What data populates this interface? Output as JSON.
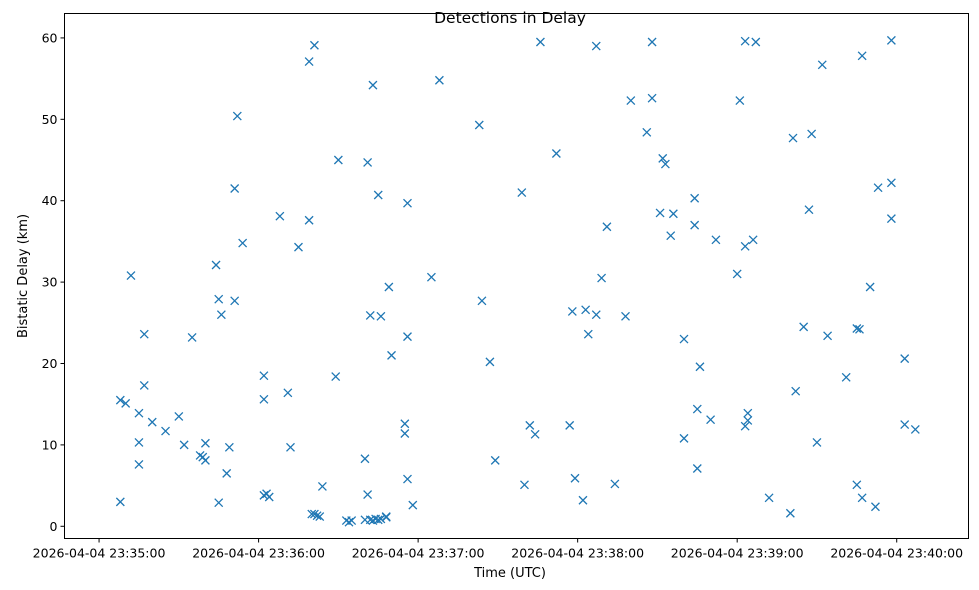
{
  "chart_data": {
    "type": "scatter",
    "title": "Detections in Delay",
    "xlabel": "Time (UTC)",
    "ylabel": "Bistatic Delay (km)",
    "x_unit": "time of day (UTC), date 2026-04-04",
    "xlim": [
      "23:34:47",
      "23:40:27"
    ],
    "ylim": [
      -1.5,
      63
    ],
    "x_ticks": [
      {
        "time": "23:35:00",
        "label": "2026-04-04 23:35:00"
      },
      {
        "time": "23:36:00",
        "label": "2026-04-04 23:36:00"
      },
      {
        "time": "23:37:00",
        "label": "2026-04-04 23:37:00"
      },
      {
        "time": "23:38:00",
        "label": "2026-04-04 23:38:00"
      },
      {
        "time": "23:39:00",
        "label": "2026-04-04 23:39:00"
      },
      {
        "time": "23:40:00",
        "label": "2026-04-04 23:40:00"
      }
    ],
    "y_ticks": [
      0,
      10,
      20,
      30,
      40,
      50,
      60
    ],
    "grid": false,
    "legend": "none",
    "marker": "x",
    "color": "#1f77b4",
    "points": [
      [
        "23:35:08",
        15.5
      ],
      [
        "23:35:08",
        3.0
      ],
      [
        "23:35:10",
        15.1
      ],
      [
        "23:35:12",
        30.8
      ],
      [
        "23:35:15",
        13.9
      ],
      [
        "23:35:15",
        10.3
      ],
      [
        "23:35:15",
        7.6
      ],
      [
        "23:35:17",
        23.6
      ],
      [
        "23:35:17",
        17.3
      ],
      [
        "23:35:20",
        12.8
      ],
      [
        "23:35:25",
        11.7
      ],
      [
        "23:35:30",
        13.5
      ],
      [
        "23:35:32",
        10.0
      ],
      [
        "23:35:35",
        23.2
      ],
      [
        "23:35:38",
        8.7
      ],
      [
        "23:35:39",
        8.5
      ],
      [
        "23:35:40",
        10.2
      ],
      [
        "23:35:40",
        8.1
      ],
      [
        "23:35:44",
        32.1
      ],
      [
        "23:35:45",
        27.9
      ],
      [
        "23:35:45",
        2.9
      ],
      [
        "23:35:46",
        26.0
      ],
      [
        "23:35:48",
        6.5
      ],
      [
        "23:35:49",
        9.7
      ],
      [
        "23:35:51",
        27.7
      ],
      [
        "23:35:51",
        41.5
      ],
      [
        "23:35:52",
        50.4
      ],
      [
        "23:35:54",
        34.8
      ],
      [
        "23:36:02",
        15.6
      ],
      [
        "23:36:02",
        18.5
      ],
      [
        "23:36:02",
        3.8
      ],
      [
        "23:36:03",
        4.0
      ],
      [
        "23:36:04",
        3.6
      ],
      [
        "23:36:08",
        38.1
      ],
      [
        "23:36:11",
        16.4
      ],
      [
        "23:36:12",
        9.7
      ],
      [
        "23:36:15",
        34.3
      ],
      [
        "23:36:19",
        57.1
      ],
      [
        "23:36:19",
        37.6
      ],
      [
        "23:36:20",
        1.5
      ],
      [
        "23:36:21",
        59.1
      ],
      [
        "23:36:21",
        1.5
      ],
      [
        "23:36:22",
        1.3
      ],
      [
        "23:36:23",
        1.2
      ],
      [
        "23:36:24",
        4.9
      ],
      [
        "23:36:29",
        18.4
      ],
      [
        "23:36:30",
        45.0
      ],
      [
        "23:36:33",
        0.7
      ],
      [
        "23:36:34",
        0.5
      ],
      [
        "23:36:35",
        0.7
      ],
      [
        "23:36:40",
        8.3
      ],
      [
        "23:36:40",
        0.8
      ],
      [
        "23:36:41",
        44.7
      ],
      [
        "23:36:41",
        3.9
      ],
      [
        "23:36:42",
        25.9
      ],
      [
        "23:36:42",
        0.8
      ],
      [
        "23:36:43",
        54.2
      ],
      [
        "23:36:43",
        0.7
      ],
      [
        "23:36:44",
        0.9
      ],
      [
        "23:36:45",
        40.7
      ],
      [
        "23:36:45",
        0.8
      ],
      [
        "23:36:46",
        25.8
      ],
      [
        "23:36:46",
        0.9
      ],
      [
        "23:36:48",
        1.1
      ],
      [
        "23:36:48",
        1.2
      ],
      [
        "23:36:49",
        29.4
      ],
      [
        "23:36:50",
        21.0
      ],
      [
        "23:36:55",
        12.6
      ],
      [
        "23:36:55",
        11.4
      ],
      [
        "23:36:56",
        23.3
      ],
      [
        "23:36:56",
        39.7
      ],
      [
        "23:36:56",
        5.8
      ],
      [
        "23:36:58",
        2.6
      ],
      [
        "23:37:05",
        30.6
      ],
      [
        "23:37:08",
        54.8
      ],
      [
        "23:37:23",
        49.3
      ],
      [
        "23:37:24",
        27.7
      ],
      [
        "23:37:27",
        20.2
      ],
      [
        "23:37:29",
        8.1
      ],
      [
        "23:37:39",
        41.0
      ],
      [
        "23:37:40",
        5.1
      ],
      [
        "23:37:42",
        12.4
      ],
      [
        "23:37:44",
        11.3
      ],
      [
        "23:37:46",
        59.5
      ],
      [
        "23:37:52",
        45.8
      ],
      [
        "23:37:57",
        12.4
      ],
      [
        "23:37:58",
        26.4
      ],
      [
        "23:37:59",
        5.9
      ],
      [
        "23:38:02",
        3.2
      ],
      [
        "23:38:03",
        26.6
      ],
      [
        "23:38:04",
        23.6
      ],
      [
        "23:38:07",
        26.0
      ],
      [
        "23:38:07",
        59.0
      ],
      [
        "23:38:09",
        30.5
      ],
      [
        "23:38:11",
        36.8
      ],
      [
        "23:38:14",
        5.2
      ],
      [
        "23:38:18",
        25.8
      ],
      [
        "23:38:20",
        52.3
      ],
      [
        "23:38:26",
        48.4
      ],
      [
        "23:38:28",
        52.6
      ],
      [
        "23:38:28",
        59.5
      ],
      [
        "23:38:31",
        38.5
      ],
      [
        "23:38:32",
        45.2
      ],
      [
        "23:38:33",
        44.5
      ],
      [
        "23:38:35",
        35.7
      ],
      [
        "23:38:36",
        38.4
      ],
      [
        "23:38:40",
        10.8
      ],
      [
        "23:38:40",
        23.0
      ],
      [
        "23:38:44",
        40.3
      ],
      [
        "23:38:44",
        37.0
      ],
      [
        "23:38:45",
        14.4
      ],
      [
        "23:38:45",
        7.1
      ],
      [
        "23:38:46",
        19.6
      ],
      [
        "23:38:50",
        13.1
      ],
      [
        "23:38:52",
        35.2
      ],
      [
        "23:39:00",
        31.0
      ],
      [
        "23:39:01",
        52.3
      ],
      [
        "23:39:03",
        59.6
      ],
      [
        "23:39:03",
        34.4
      ],
      [
        "23:39:03",
        12.3
      ],
      [
        "23:39:04",
        13.9
      ],
      [
        "23:39:04",
        13.0
      ],
      [
        "23:39:06",
        35.2
      ],
      [
        "23:39:07",
        59.5
      ],
      [
        "23:39:12",
        3.5
      ],
      [
        "23:39:20",
        1.6
      ],
      [
        "23:39:21",
        47.7
      ],
      [
        "23:39:22",
        16.6
      ],
      [
        "23:39:25",
        24.5
      ],
      [
        "23:39:27",
        38.9
      ],
      [
        "23:39:28",
        48.2
      ],
      [
        "23:39:30",
        10.3
      ],
      [
        "23:39:32",
        56.7
      ],
      [
        "23:39:34",
        23.4
      ],
      [
        "23:39:41",
        18.3
      ],
      [
        "23:39:45",
        24.3
      ],
      [
        "23:39:45",
        5.1
      ],
      [
        "23:39:46",
        24.2
      ],
      [
        "23:39:47",
        3.5
      ],
      [
        "23:39:47",
        57.8
      ],
      [
        "23:39:50",
        29.4
      ],
      [
        "23:39:52",
        2.4
      ],
      [
        "23:39:53",
        41.6
      ],
      [
        "23:39:58",
        59.7
      ],
      [
        "23:39:58",
        42.2
      ],
      [
        "23:39:58",
        37.8
      ],
      [
        "23:40:03",
        20.6
      ],
      [
        "23:40:03",
        12.5
      ],
      [
        "23:40:07",
        11.9
      ]
    ]
  }
}
